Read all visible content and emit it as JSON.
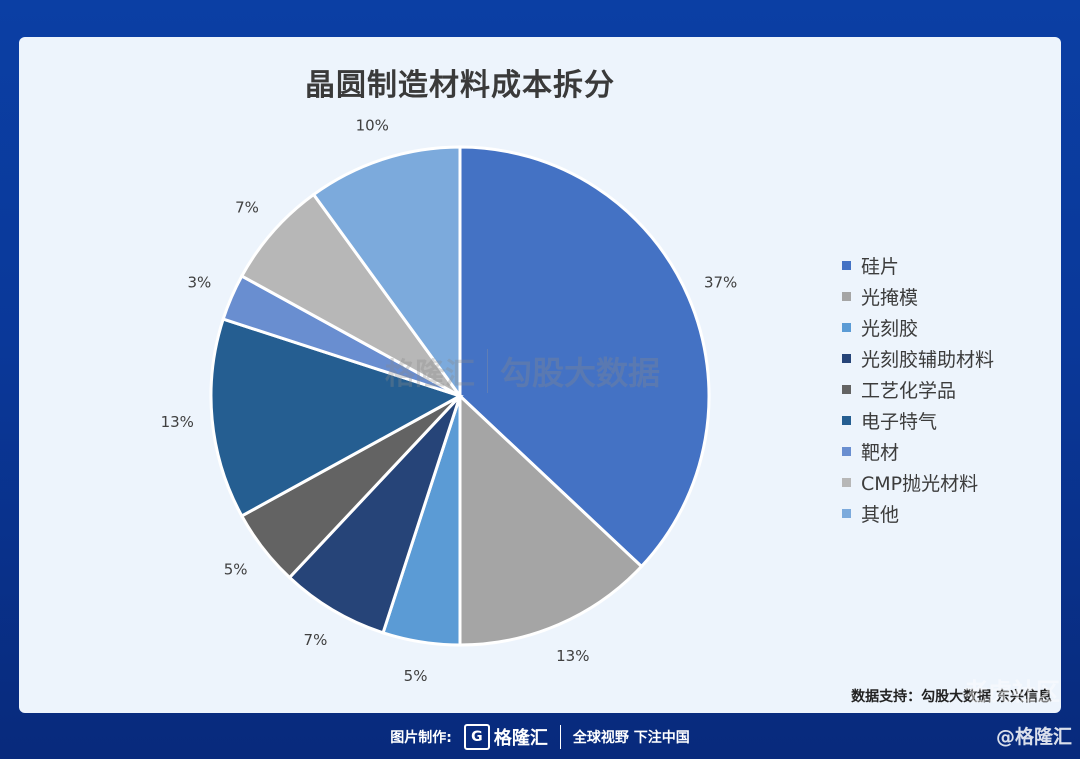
{
  "chart_data": {
    "type": "pie",
    "title": "晶圆制造材料成本拆分",
    "slices": [
      {
        "label": "硅片",
        "value": 37,
        "color": "#4472c4"
      },
      {
        "label": "光掩模",
        "value": 13,
        "color": "#a5a5a5"
      },
      {
        "label": "光刻胶",
        "value": 5,
        "color": "#5b9bd5"
      },
      {
        "label": "光刻胶辅助材料",
        "value": 7,
        "color": "#264478"
      },
      {
        "label": "工艺化学品",
        "value": 5,
        "color": "#636363"
      },
      {
        "label": "电子特气",
        "value": 13,
        "color": "#255e91"
      },
      {
        "label": "靶材",
        "value": 3,
        "color": "#698ed0"
      },
      {
        "label": "CMP抛光材料",
        "value": 7,
        "color": "#b7b7b7"
      },
      {
        "label": "其他",
        "value": 10,
        "color": "#7caadc"
      }
    ],
    "value_format": "percent",
    "legend_position": "right"
  },
  "source_text": "数据支持：勾股大数据 东兴信息",
  "watermark": {
    "logo": "格隆汇",
    "text": "勾股大数据"
  },
  "footer": {
    "made_label": "图片制作:",
    "logo_text": "格隆汇",
    "slogan": "全球视野 下注中国"
  },
  "corner_text": "@格隆汇",
  "corner_watermark": "老虎社区"
}
